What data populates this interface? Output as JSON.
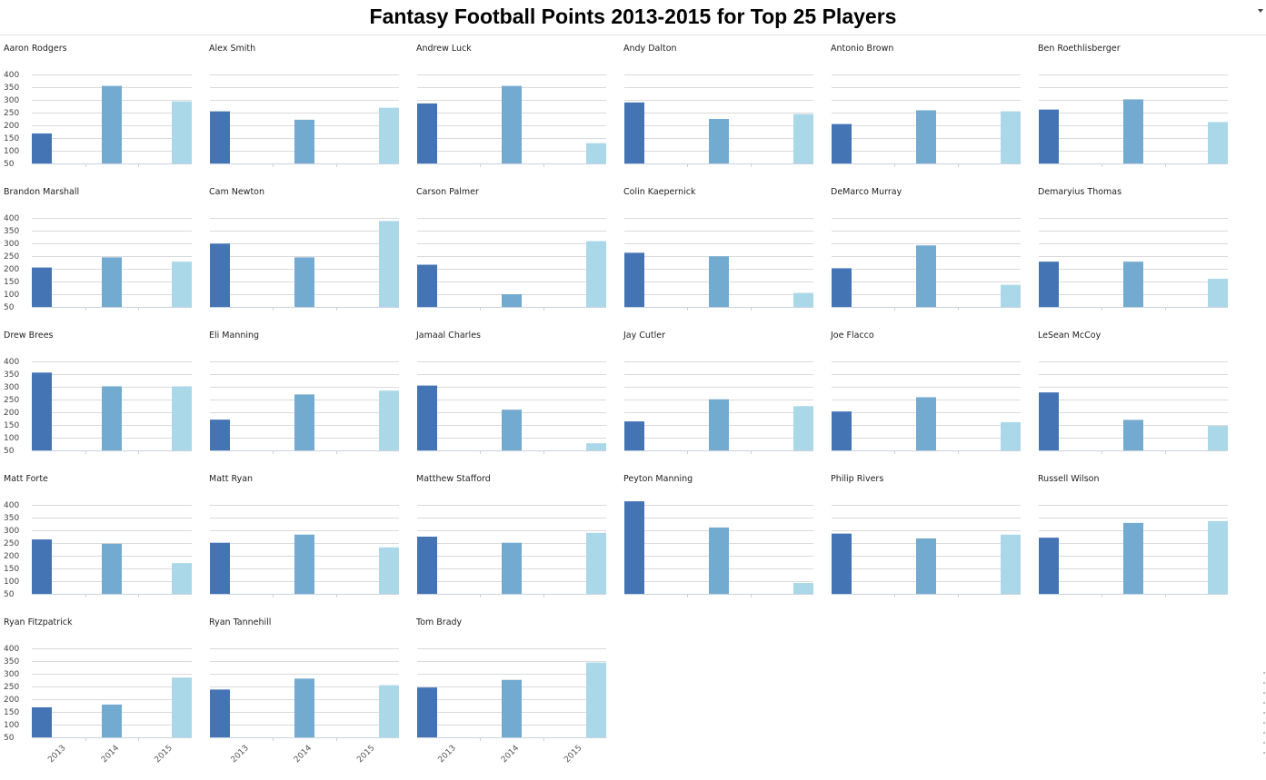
{
  "title": "Fantasy Football Points 2013-2015 for Top 25 Players",
  "colors": {
    "2013": "#4574b5",
    "2014": "#73aad0",
    "2015": "#abd8e8",
    "grid": "#dadada"
  },
  "chart_data": {
    "type": "bar",
    "layout": "small-multiples",
    "categories": [
      "2013",
      "2014",
      "2015"
    ],
    "ylim": [
      50,
      400
    ],
    "yticks": [
      50,
      100,
      150,
      200,
      250,
      300,
      350,
      400
    ],
    "grid": true,
    "panels": [
      {
        "title": "Aaron Rodgers",
        "values": [
          168,
          355,
          294
        ]
      },
      {
        "title": "Alex Smith",
        "values": [
          255,
          222,
          269
        ]
      },
      {
        "title": "Andrew Luck",
        "values": [
          286,
          355,
          130
        ]
      },
      {
        "title": "Andy Dalton",
        "values": [
          290,
          225,
          244
        ]
      },
      {
        "title": "Antonio Brown",
        "values": [
          205,
          259,
          255
        ]
      },
      {
        "title": "Ben Roethlisberger",
        "values": [
          262,
          302,
          213
        ]
      },
      {
        "title": "Brandon Marshall",
        "values": [
          205,
          245,
          228
        ]
      },
      {
        "title": "Cam Newton",
        "values": [
          299,
          245,
          388
        ]
      },
      {
        "title": "Carson Palmer",
        "values": [
          216,
          100,
          309
        ]
      },
      {
        "title": "Colin Kaepernick",
        "values": [
          263,
          249,
          105
        ]
      },
      {
        "title": "DeMarco Murray",
        "values": [
          202,
          292,
          137
        ]
      },
      {
        "title": "Demaryius Thomas",
        "values": [
          228,
          228,
          161
        ]
      },
      {
        "title": "Drew Brees",
        "values": [
          356,
          302,
          302
        ]
      },
      {
        "title": "Eli Manning",
        "values": [
          171,
          270,
          285
        ]
      },
      {
        "title": "Jamaal Charles",
        "values": [
          305,
          210,
          78
        ]
      },
      {
        "title": "Jay Cutler",
        "values": [
          164,
          251,
          224
        ]
      },
      {
        "title": "Joe Flacco",
        "values": [
          203,
          259,
          161
        ]
      },
      {
        "title": "LeSean McCoy",
        "values": [
          278,
          170,
          146
        ]
      },
      {
        "title": "Matt Forte",
        "values": [
          264,
          247,
          171
        ]
      },
      {
        "title": "Matt Ryan",
        "values": [
          251,
          283,
          233
        ]
      },
      {
        "title": "Matthew Stafford",
        "values": [
          275,
          251,
          290
        ]
      },
      {
        "title": "Peyton Manning",
        "values": [
          414,
          311,
          93
        ]
      },
      {
        "title": "Philip Rivers",
        "values": [
          287,
          268,
          283
        ]
      },
      {
        "title": "Russell Wilson",
        "values": [
          271,
          329,
          336
        ]
      },
      {
        "title": "Ryan Fitzpatrick",
        "values": [
          168,
          179,
          285
        ]
      },
      {
        "title": "Ryan Tannehill",
        "values": [
          238,
          281,
          255
        ]
      },
      {
        "title": "Tom Brady",
        "values": [
          246,
          276,
          344
        ]
      }
    ]
  }
}
